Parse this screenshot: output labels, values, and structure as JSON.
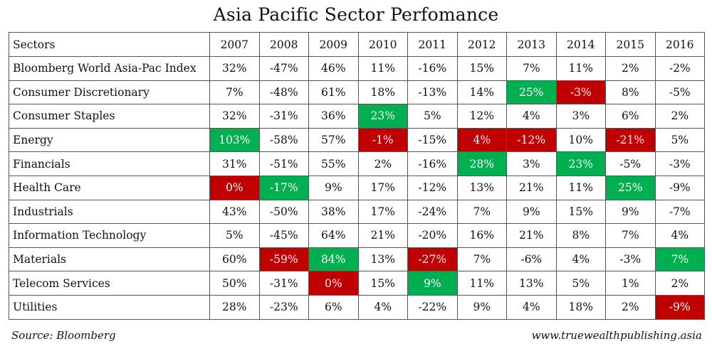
{
  "chart_data": {
    "type": "table",
    "title": "Asia Pacific Sector Perfomance",
    "header_label": "Sectors",
    "columns": [
      "2007",
      "2008",
      "2009",
      "2010",
      "2011",
      "2012",
      "2013",
      "2014",
      "2015",
      "2016"
    ],
    "rows": [
      {
        "sector": "Bloomberg World Asia-Pac Index",
        "values": [
          "32%",
          "-47%",
          "46%",
          "11%",
          "-16%",
          "15%",
          "7%",
          "11%",
          "2%",
          "-2%"
        ],
        "highlight": [
          "",
          "",
          "",
          "",
          "",
          "",
          "",
          "",
          "",
          ""
        ]
      },
      {
        "sector": "Consumer Discretionary",
        "values": [
          "7%",
          "-48%",
          "61%",
          "18%",
          "-13%",
          "14%",
          "25%",
          "-3%",
          "8%",
          "-5%"
        ],
        "highlight": [
          "",
          "",
          "",
          "",
          "",
          "",
          "green",
          "red",
          "",
          ""
        ]
      },
      {
        "sector": "Consumer Staples",
        "values": [
          "32%",
          "-31%",
          "36%",
          "23%",
          "5%",
          "12%",
          "4%",
          "3%",
          "6%",
          "2%"
        ],
        "highlight": [
          "",
          "",
          "",
          "green",
          "",
          "",
          "",
          "",
          "",
          ""
        ]
      },
      {
        "sector": "Energy",
        "values": [
          "103%",
          "-58%",
          "57%",
          "-1%",
          "-15%",
          "4%",
          "-12%",
          "10%",
          "-21%",
          "5%"
        ],
        "highlight": [
          "green",
          "",
          "",
          "red",
          "",
          "red",
          "red",
          "",
          "red",
          ""
        ]
      },
      {
        "sector": "Financials",
        "values": [
          "31%",
          "-51%",
          "55%",
          "2%",
          "-16%",
          "28%",
          "3%",
          "23%",
          "-5%",
          "-3%"
        ],
        "highlight": [
          "",
          "",
          "",
          "",
          "",
          "green",
          "",
          "green",
          "",
          ""
        ]
      },
      {
        "sector": "Health Care",
        "values": [
          "0%",
          "-17%",
          "9%",
          "17%",
          "-12%",
          "13%",
          "21%",
          "11%",
          "25%",
          "-9%"
        ],
        "highlight": [
          "red",
          "green",
          "",
          "",
          "",
          "",
          "",
          "",
          "green",
          ""
        ]
      },
      {
        "sector": "Industrials",
        "values": [
          "43%",
          "-50%",
          "38%",
          "17%",
          "-24%",
          "7%",
          "9%",
          "15%",
          "9%",
          "-7%"
        ],
        "highlight": [
          "",
          "",
          "",
          "",
          "",
          "",
          "",
          "",
          "",
          ""
        ]
      },
      {
        "sector": "Information Technology",
        "values": [
          "5%",
          "-45%",
          "64%",
          "21%",
          "-20%",
          "16%",
          "21%",
          "8%",
          "7%",
          "4%"
        ],
        "highlight": [
          "",
          "",
          "",
          "",
          "",
          "",
          "",
          "",
          "",
          ""
        ]
      },
      {
        "sector": "Materials",
        "values": [
          "60%",
          "-59%",
          "84%",
          "13%",
          "-27%",
          "7%",
          "-6%",
          "4%",
          "-3%",
          "7%"
        ],
        "highlight": [
          "",
          "red",
          "green",
          "",
          "red",
          "",
          "",
          "",
          "",
          "green"
        ]
      },
      {
        "sector": "Telecom Services",
        "values": [
          "50%",
          "-31%",
          "0%",
          "15%",
          "9%",
          "11%",
          "13%",
          "5%",
          "1%",
          "2%"
        ],
        "highlight": [
          "",
          "",
          "red",
          "",
          "green",
          "",
          "",
          "",
          "",
          ""
        ]
      },
      {
        "sector": "Utilities",
        "values": [
          "28%",
          "-23%",
          "6%",
          "4%",
          "-22%",
          "9%",
          "4%",
          "18%",
          "2%",
          "-9%"
        ],
        "highlight": [
          "",
          "",
          "",
          "",
          "",
          "",
          "",
          "",
          "",
          "red"
        ]
      }
    ],
    "colors": {
      "best": "#00b050",
      "worst": "#c00000"
    }
  },
  "footer": {
    "source": "Source: Bloomberg",
    "site": "www.truewealthpublishing.asia"
  }
}
